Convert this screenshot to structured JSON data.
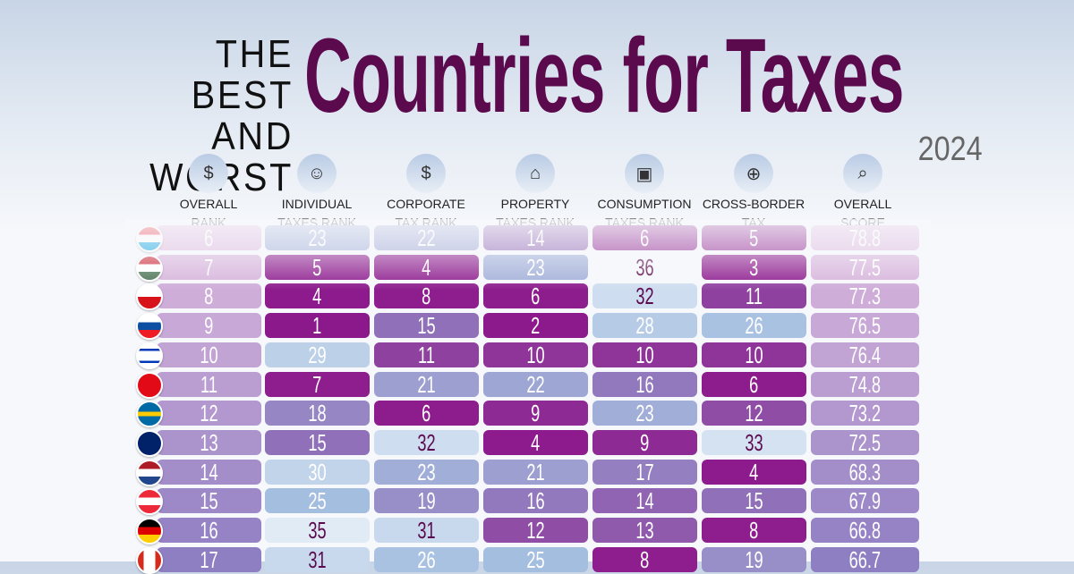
{
  "header": {
    "subtitle_line1": "THE BEST",
    "subtitle_line2": "AND WORST",
    "title": "Countries for Taxes",
    "year": "2024"
  },
  "chart_data": {
    "type": "table",
    "columns": [
      {
        "label": "OVERALL\nRANK",
        "icon": "money-bag-hand-icon"
      },
      {
        "label": "INDIVIDUAL\nTAXES RANK",
        "icon": "person-icon"
      },
      {
        "label": "CORPORATE\nTAX RANK",
        "icon": "corporate-money-icon"
      },
      {
        "label": "PROPERTY\nTAXES RANK",
        "icon": "house-dollar-icon"
      },
      {
        "label": "CONSUMPTION\nTAXES RANK",
        "icon": "shopping-bag-icon"
      },
      {
        "label": "CROSS-BORDER TAX\nRULES RANK",
        "icon": "globe-dollar-icon"
      },
      {
        "label": "OVERALL\nSCORE",
        "icon": "magnifier-dollar-icon"
      }
    ],
    "rows": [
      {
        "flag": "luxembourg",
        "values": [
          "6",
          "23",
          "22",
          "14",
          "6",
          "5",
          "78.8"
        ]
      },
      {
        "flag": "hungary",
        "values": [
          "7",
          "5",
          "4",
          "23",
          "36",
          "3",
          "77.5"
        ]
      },
      {
        "flag": "czech-republic",
        "values": [
          "8",
          "4",
          "8",
          "6",
          "32",
          "11",
          "77.3"
        ]
      },
      {
        "flag": "slovakia",
        "values": [
          "9",
          "1",
          "15",
          "2",
          "28",
          "26",
          "76.5"
        ]
      },
      {
        "flag": "israel",
        "values": [
          "10",
          "29",
          "11",
          "10",
          "10",
          "10",
          "76.4"
        ]
      },
      {
        "flag": "turkey",
        "values": [
          "11",
          "7",
          "21",
          "22",
          "16",
          "6",
          "74.8"
        ]
      },
      {
        "flag": "sweden",
        "values": [
          "12",
          "18",
          "6",
          "9",
          "23",
          "12",
          "73.2"
        ]
      },
      {
        "flag": "australia",
        "values": [
          "13",
          "15",
          "32",
          "4",
          "9",
          "33",
          "72.5"
        ]
      },
      {
        "flag": "netherlands",
        "values": [
          "14",
          "30",
          "23",
          "21",
          "17",
          "4",
          "68.3"
        ]
      },
      {
        "flag": "austria",
        "values": [
          "15",
          "25",
          "19",
          "16",
          "14",
          "15",
          "67.9"
        ]
      },
      {
        "flag": "germany",
        "values": [
          "16",
          "35",
          "31",
          "12",
          "13",
          "8",
          "66.8"
        ]
      },
      {
        "flag": "canada",
        "values": [
          "17",
          "31",
          "26",
          "25",
          "8",
          "19",
          "66.7"
        ]
      }
    ]
  }
}
